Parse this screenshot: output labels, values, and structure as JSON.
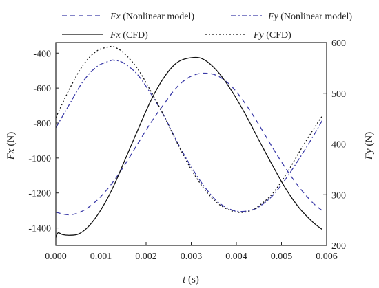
{
  "chart_data": {
    "type": "line",
    "x_axis": {
      "label_var": "t",
      "label_unit": " (s)",
      "range": [
        0,
        0.006
      ],
      "ticks": [
        0,
        0.001,
        0.002,
        0.003,
        0.004,
        0.005,
        0.006
      ],
      "tick_labels": [
        "0.000",
        "0.001",
        "0.002",
        "0.003",
        "0.004",
        "0.005",
        "0.006"
      ]
    },
    "y_left": {
      "label_var": "Fx",
      "label_unit": " (N)",
      "range": [
        -1500,
        -340
      ],
      "ticks": [
        -1400,
        -1200,
        -1000,
        -800,
        -600,
        -400
      ],
      "tick_labels": [
        "-1400",
        "-1200",
        "-1000",
        "-800",
        "-600",
        "-400"
      ]
    },
    "y_right": {
      "label_var": "Fy",
      "label_unit": " (N)",
      "range": [
        200,
        600
      ],
      "ticks": [
        200,
        300,
        400,
        500,
        600
      ],
      "tick_labels": [
        "200",
        "300",
        "400",
        "500",
        "600"
      ]
    },
    "grid": false,
    "legend_position": "top",
    "series": [
      {
        "name_var": "Fx",
        "name_rest": " (Nonlinear model)",
        "axis": "left",
        "color": "#3a3aa8",
        "style": "dashed",
        "x": [
          0,
          0.0003,
          0.0006,
          0.0009,
          0.0012,
          0.0015,
          0.0018,
          0.0021,
          0.0024,
          0.0027,
          0.003,
          0.0033,
          0.0036,
          0.0039,
          0.0042,
          0.0045,
          0.0048,
          0.0051,
          0.0054,
          0.0057,
          0.0059
        ],
        "y": [
          -1310,
          -1325,
          -1302,
          -1245,
          -1160,
          -1050,
          -925,
          -800,
          -690,
          -590,
          -532,
          -515,
          -532,
          -592,
          -690,
          -810,
          -940,
          -1062,
          -1170,
          -1258,
          -1300
        ]
      },
      {
        "name_var": "Fy",
        "name_rest": " (Nonlinear model)",
        "axis": "right",
        "color": "#3a3aa8",
        "style": "dashdot",
        "x": [
          0,
          0.0003,
          0.0006,
          0.0009,
          0.0012,
          0.0013,
          0.0015,
          0.0018,
          0.0021,
          0.0024,
          0.0027,
          0.003,
          0.0033,
          0.0036,
          0.0039,
          0.0041,
          0.0043,
          0.0045,
          0.0048,
          0.0051,
          0.0054,
          0.0057,
          0.0059
        ],
        "y": [
          432,
          478,
          523,
          552,
          564,
          565,
          560,
          538,
          500,
          455,
          402,
          355,
          315,
          285,
          270,
          267,
          269,
          276,
          298,
          332,
          372,
          415,
          446
        ]
      },
      {
        "name_var": "Fx",
        "name_rest": " (CFD)",
        "axis": "left",
        "color": "#111111",
        "style": "solid",
        "x": [
          0,
          5e-05,
          0.00015,
          0.0003,
          0.0005,
          0.0007,
          0.0009,
          0.0011,
          0.0013,
          0.0015,
          0.0018,
          0.0021,
          0.0024,
          0.0027,
          0.00305,
          0.0033,
          0.0036,
          0.0039,
          0.0042,
          0.0045,
          0.0048,
          0.0051,
          0.0054,
          0.0057,
          0.0059
        ],
        "y": [
          -1455,
          -1428,
          -1438,
          -1442,
          -1435,
          -1398,
          -1335,
          -1252,
          -1150,
          -1030,
          -850,
          -675,
          -538,
          -452,
          -425,
          -440,
          -510,
          -618,
          -750,
          -898,
          -1042,
          -1178,
          -1288,
          -1368,
          -1408
        ]
      },
      {
        "name_var": "Fy",
        "name_rest": " (CFD)",
        "axis": "right",
        "color": "#111111",
        "style": "dotted",
        "x": [
          0,
          0.0003,
          0.0006,
          0.0009,
          0.0012,
          0.0013,
          0.0015,
          0.0018,
          0.0021,
          0.0024,
          0.0027,
          0.003,
          0.0033,
          0.0036,
          0.0039,
          0.0041,
          0.0043,
          0.0045,
          0.0048,
          0.0051,
          0.0054,
          0.0057,
          0.0059
        ],
        "y": [
          452,
          508,
          555,
          583,
          592,
          591,
          580,
          550,
          505,
          455,
          400,
          350,
          310,
          282,
          268,
          265,
          268,
          278,
          302,
          340,
          385,
          428,
          455
        ]
      }
    ]
  }
}
